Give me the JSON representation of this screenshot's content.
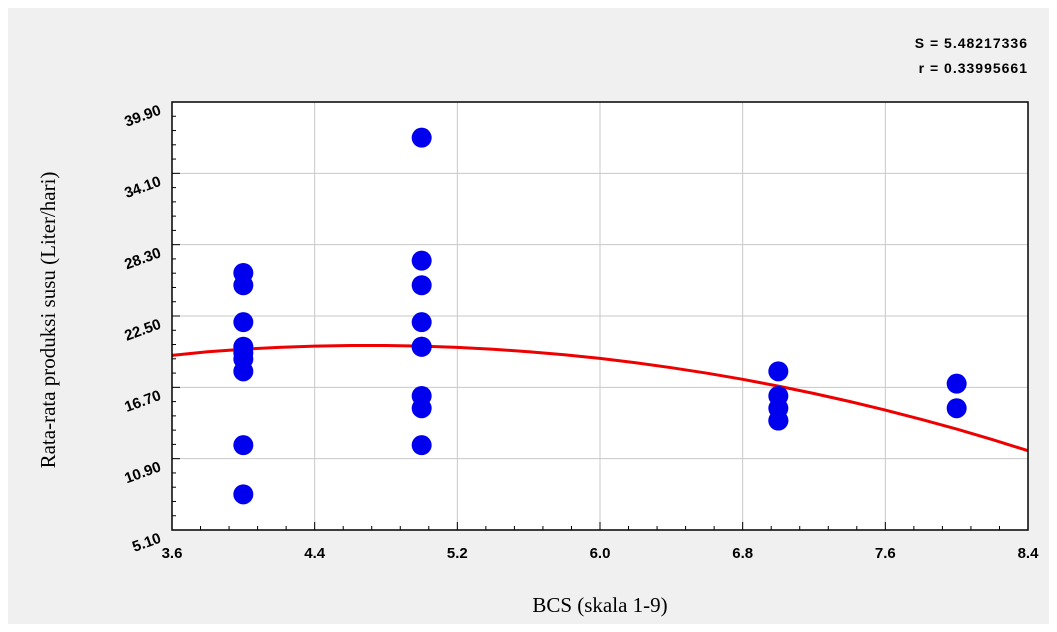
{
  "chart_data": {
    "type": "scatter",
    "title": "",
    "xlabel": "BCS (skala 1-9)",
    "ylabel": "Rata-rata produksi susu (Liter/hari)",
    "xlim": [
      3.6,
      8.4
    ],
    "ylim": [
      5.1,
      39.9
    ],
    "x_ticks": [
      "3.6",
      "4.4",
      "5.2",
      "6.0",
      "6.8",
      "7.6",
      "8.4"
    ],
    "y_ticks": [
      "5.10",
      "10.90",
      "16.70",
      "22.50",
      "28.30",
      "34.10",
      "39.90"
    ],
    "grid": true,
    "stats": {
      "s": "S = 5.48217336",
      "r": "r = 0.33995661"
    },
    "colors": {
      "points": "#0000ee",
      "curve": "#ee0000",
      "background": "#f0f0f0",
      "plot_background": "#ffffff",
      "grid": "#c8c8c8"
    },
    "series": [
      {
        "kind": "points",
        "x": [
          4,
          4,
          4,
          4,
          4,
          4,
          4,
          4,
          4,
          5,
          5,
          5,
          5,
          5,
          5,
          5,
          5,
          5,
          7,
          7,
          7,
          7,
          7,
          8,
          8
        ],
        "y": [
          26,
          25,
          22,
          20,
          19.5,
          19,
          18,
          12,
          8,
          37,
          27,
          25,
          22,
          20,
          16,
          15,
          12,
          20,
          18,
          16,
          15,
          14,
          14,
          17,
          15
        ]
      },
      {
        "kind": "fit-curve",
        "x": [
          3.6,
          3.8,
          4.0,
          4.2,
          4.4,
          4.6,
          4.8,
          5.0,
          5.2,
          5.4,
          5.6,
          5.8,
          6.0,
          6.2,
          6.4,
          6.6,
          6.8,
          7.0,
          7.2,
          7.4,
          7.6,
          7.8,
          8.0,
          8.2,
          8.4
        ],
        "y": [
          19.3,
          19.6,
          19.8,
          19.95,
          20.05,
          20.1,
          20.1,
          20.05,
          19.95,
          19.8,
          19.6,
          19.35,
          19.05,
          18.7,
          18.3,
          17.85,
          17.35,
          16.8,
          16.2,
          15.55,
          14.85,
          14.1,
          13.3,
          12.45,
          11.55
        ]
      }
    ]
  }
}
